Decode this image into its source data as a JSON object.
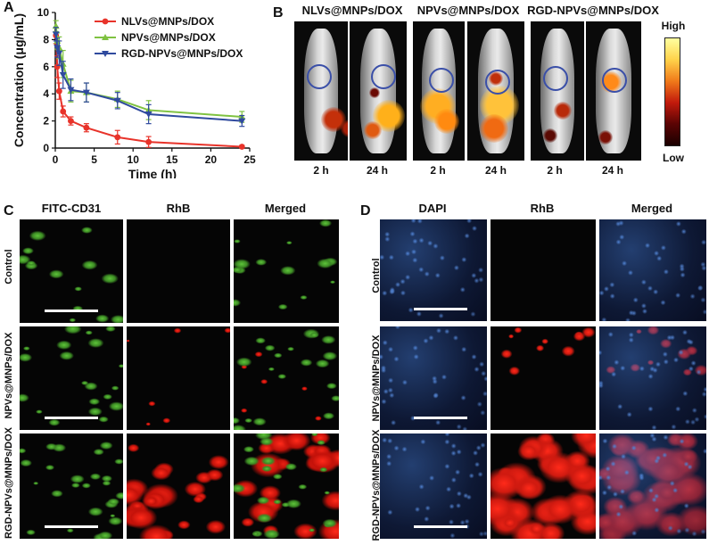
{
  "panels": {
    "a": "A",
    "b": "B",
    "c": "C",
    "d": "D"
  },
  "chart_data": {
    "type": "line",
    "xlabel": "Time (h)",
    "ylabel": "Concentration (μg/mL)",
    "xlim": [
      0,
      25
    ],
    "ylim": [
      0,
      10
    ],
    "xticks": [
      "0",
      "5",
      "10",
      "15",
      "20",
      "25"
    ],
    "yticks": [
      "0",
      "2",
      "4",
      "6",
      "8",
      "10"
    ],
    "legend_position": "top-right",
    "x": [
      0.083,
      0.25,
      0.5,
      1,
      2,
      4,
      8,
      12,
      24
    ],
    "series": [
      {
        "name": "NLVs@MNPs/DOX",
        "color": "#e8332a",
        "marker": "circle",
        "values": [
          8.3,
          6.0,
          4.2,
          2.7,
          2.0,
          1.5,
          0.8,
          0.45,
          0.1
        ],
        "errors": [
          0.6,
          0.8,
          0.6,
          0.4,
          0.3,
          0.3,
          0.5,
          0.4,
          0.1
        ]
      },
      {
        "name": "NPVs@MNPs/DOX",
        "color": "#7fc241",
        "marker": "triangle-up",
        "values": [
          9.0,
          7.9,
          7.4,
          6.2,
          4.2,
          4.1,
          3.6,
          2.8,
          2.3
        ],
        "errors": [
          0.4,
          0.6,
          0.8,
          1.0,
          0.8,
          0.7,
          0.6,
          0.7,
          0.4
        ]
      },
      {
        "name": "RGD-NPVs@MNPs/DOX",
        "color": "#2f4a9e",
        "marker": "triangle-down",
        "values": [
          8.4,
          7.4,
          7.0,
          5.4,
          4.3,
          4.1,
          3.5,
          2.5,
          2.0
        ],
        "errors": [
          0.5,
          0.7,
          0.9,
          1.0,
          0.8,
          0.7,
          0.6,
          0.7,
          0.4
        ]
      }
    ]
  },
  "panel_b": {
    "groups": [
      "NLVs@MNPs/DOX",
      "NPVs@MNPs/DOX",
      "RGD-NPVs@MNPs/DOX"
    ],
    "times": [
      "2 h",
      "24 h",
      "2 h",
      "24 h",
      "2 h",
      "24 h"
    ],
    "scale_high": "High",
    "scale_low": "Low"
  },
  "panel_c": {
    "columns": [
      "FITC-CD31",
      "RhB",
      "Merged"
    ],
    "rows": [
      "Control",
      "NPVs@MNPs/DOX",
      "RGD-NPVs@MNPs/DOX"
    ]
  },
  "panel_d": {
    "columns": [
      "DAPI",
      "RhB",
      "Merged"
    ],
    "rows": [
      "Control",
      "NPVs@MNPs/DOX",
      "RGD-NPVs@MNPs/DOX"
    ]
  }
}
